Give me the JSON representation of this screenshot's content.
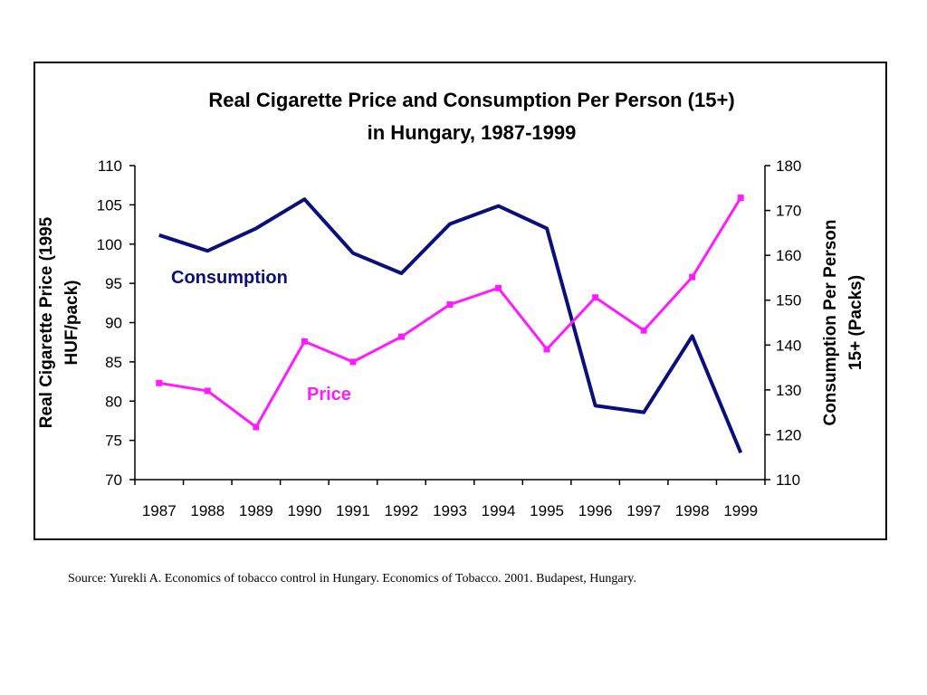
{
  "chart_data": {
    "type": "line",
    "title": [
      "Real Cigarette Price and Consumption Per Person (15+)",
      "in Hungary, 1987-1999"
    ],
    "categories": [
      "1987",
      "1988",
      "1989",
      "1990",
      "1991",
      "1992",
      "1993",
      "1994",
      "1995",
      "1996",
      "1997",
      "1998",
      "1999"
    ],
    "y_left": {
      "label": [
        "Real Cigarette Price (1995",
        "HUF/pack)"
      ],
      "min": 70,
      "max": 110,
      "step": 5
    },
    "y_right": {
      "label": [
        "Consumption Per Person",
        "15+ (Packs)"
      ],
      "min": 110,
      "max": 180,
      "step": 10
    },
    "series": [
      {
        "name": "Consumption",
        "axis": "right",
        "color": "#0b0f7a",
        "marker": "none",
        "values": [
          164.5,
          161,
          166,
          172.5,
          160.5,
          156,
          167,
          171,
          166,
          126.5,
          125,
          142,
          116
        ]
      },
      {
        "name": "Price",
        "axis": "left",
        "color": "#ff1aff",
        "marker": "square",
        "values": [
          82.3,
          81.3,
          76.7,
          87.6,
          85,
          88.2,
          92.3,
          94.4,
          86.6,
          93.2,
          89,
          95.8,
          105.9
        ]
      }
    ],
    "grid": false,
    "legend": "inline labels"
  },
  "source_note": "Source: Yurekli A. Economics of tobacco control in Hungary. Economics of Tobacco. 2001. Budapest, Hungary."
}
